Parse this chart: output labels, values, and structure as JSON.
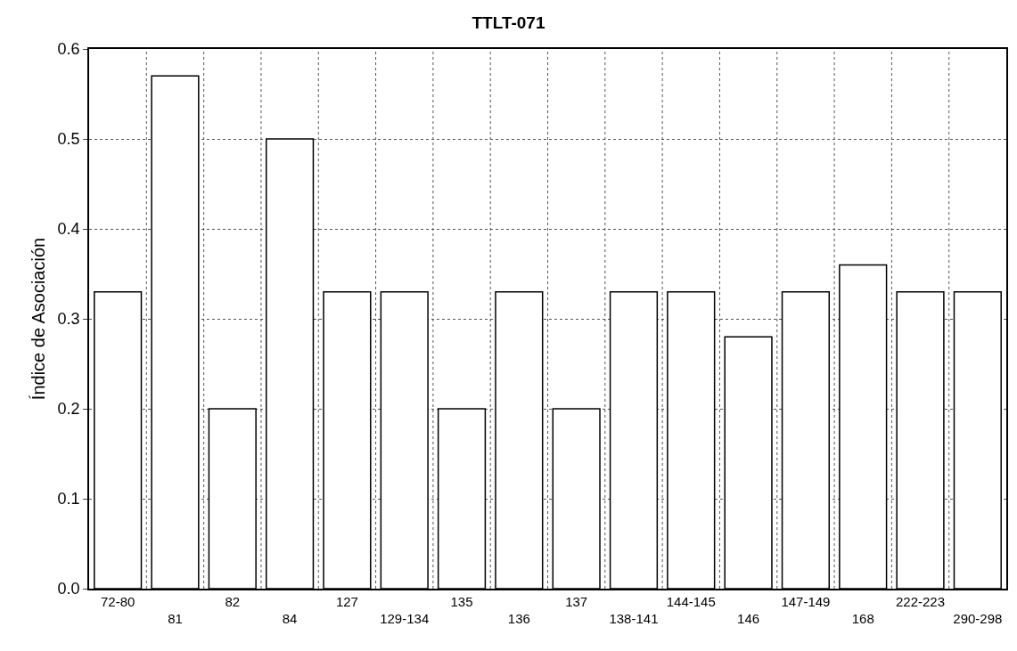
{
  "chart_data": {
    "type": "bar",
    "title": "TTLT-071",
    "ylabel": "Índice de Asociación",
    "categories": [
      "72-80",
      "81",
      "82",
      "84",
      "127",
      "129-134",
      "135",
      "136",
      "137",
      "138-141",
      "144-145",
      "146",
      "147-149",
      "168",
      "222-223",
      "290-298"
    ],
    "values": [
      0.33,
      0.57,
      0.2,
      0.5,
      0.33,
      0.33,
      0.2,
      0.33,
      0.2,
      0.33,
      0.33,
      0.28,
      0.33,
      0.36,
      0.33,
      0.33
    ],
    "color": "#ffffff",
    "ylim": [
      0,
      0.6
    ],
    "yticks": [
      {
        "value": 0,
        "label": "0.0"
      },
      0.1,
      0.2,
      0.3,
      0.4,
      0.5,
      0.6
    ],
    "grid": true
  }
}
